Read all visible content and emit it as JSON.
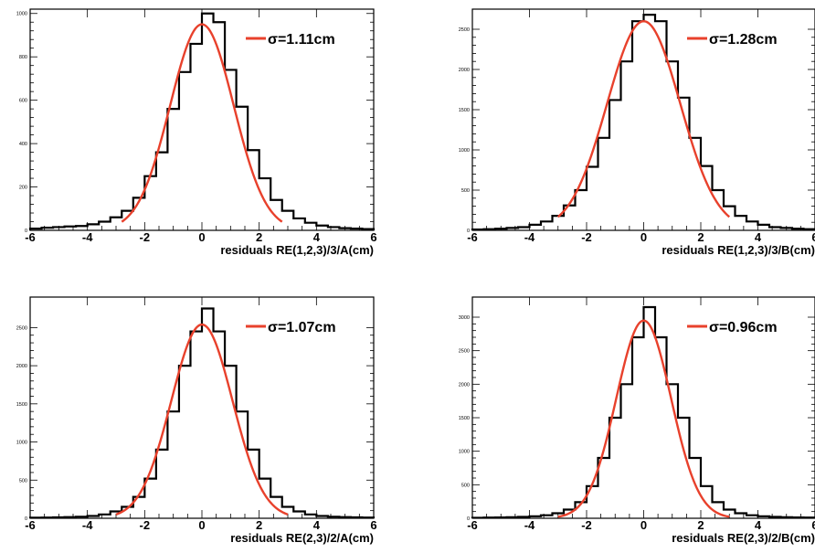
{
  "colors": {
    "histogram": "#000000",
    "fit": "#e8412c",
    "frame": "#000000",
    "background": "#ffffff"
  },
  "chart_data": [
    {
      "type": "line",
      "xlabel": "residuals RE(1,2,3)/3/A(cm)",
      "legend_label": "σ=1.11cm",
      "legend_placement": "top-right",
      "xlim": [
        -6,
        6
      ],
      "ylim": [
        0,
        1020
      ],
      "xticks": [
        -6,
        -4,
        -2,
        0,
        2,
        4,
        6
      ],
      "xtick_labels": [
        "-6",
        "-4",
        "-2",
        "0",
        "2",
        "4",
        "6"
      ],
      "yticks": [
        0,
        200,
        400,
        600,
        800,
        1000
      ],
      "ytick_labels": [
        "0",
        "200",
        "400",
        "600",
        "800",
        "1000"
      ],
      "bin_edges": [
        -6.0,
        -5.6,
        -5.2,
        -4.8,
        -4.4,
        -4.0,
        -3.6,
        -3.2,
        -2.8,
        -2.4,
        -2.0,
        -1.6,
        -1.2,
        -0.8,
        -0.4,
        0.0,
        0.4,
        0.8,
        1.2,
        1.6,
        2.0,
        2.4,
        2.8,
        3.2,
        3.6,
        4.0,
        4.4,
        4.8,
        5.2,
        5.6,
        6.0
      ],
      "series": [
        {
          "kind": "histogram",
          "values": [
            8,
            12,
            15,
            18,
            20,
            28,
            40,
            60,
            90,
            150,
            250,
            360,
            560,
            730,
            860,
            1000,
            960,
            740,
            570,
            370,
            240,
            140,
            90,
            55,
            35,
            22,
            15,
            10,
            8,
            6
          ]
        },
        {
          "kind": "fit",
          "amplitude": 950,
          "mean": 0,
          "sigma": 1.11,
          "x_range": [
            -2.8,
            2.8
          ]
        }
      ]
    },
    {
      "type": "line",
      "xlabel": "residuals RE(1,2,3)/3/B(cm)",
      "legend_label": "σ=1.28cm",
      "legend_placement": "top-right",
      "xlim": [
        -6,
        6
      ],
      "ylim": [
        0,
        2750
      ],
      "xticks": [
        -6,
        -4,
        -2,
        0,
        2,
        4,
        6
      ],
      "xtick_labels": [
        "-6",
        "-4",
        "-2",
        "0",
        "2",
        "4",
        "6"
      ],
      "yticks": [
        0,
        500,
        1000,
        1500,
        2000,
        2500
      ],
      "ytick_labels": [
        "0",
        "500",
        "1000",
        "1500",
        "2000",
        "2500"
      ],
      "bin_edges": [
        -6.0,
        -5.6,
        -5.2,
        -4.8,
        -4.4,
        -4.0,
        -3.6,
        -3.2,
        -2.8,
        -2.4,
        -2.0,
        -1.6,
        -1.2,
        -0.8,
        -0.4,
        0.0,
        0.4,
        0.8,
        1.2,
        1.6,
        2.0,
        2.4,
        2.8,
        3.2,
        3.6,
        4.0,
        4.4,
        4.8,
        5.2,
        5.6,
        6.0
      ],
      "series": [
        {
          "kind": "histogram",
          "values": [
            10,
            15,
            20,
            30,
            40,
            70,
            110,
            180,
            310,
            500,
            790,
            1150,
            1620,
            2100,
            2600,
            2680,
            2600,
            2100,
            1650,
            1150,
            800,
            500,
            300,
            180,
            110,
            70,
            40,
            30,
            20,
            15
          ]
        },
        {
          "kind": "fit",
          "amplitude": 2600,
          "mean": 0,
          "sigma": 1.28,
          "x_range": [
            -3.0,
            3.0
          ]
        }
      ]
    },
    {
      "type": "line",
      "xlabel": "residuals RE(2,3)/2/A(cm)",
      "legend_label": "σ=1.07cm",
      "legend_placement": "top-right",
      "xlim": [
        -6,
        6
      ],
      "ylim": [
        0,
        2900
      ],
      "xticks": [
        -6,
        -4,
        -2,
        0,
        2,
        4,
        6
      ],
      "xtick_labels": [
        "-6",
        "-4",
        "-2",
        "0",
        "2",
        "4",
        "6"
      ],
      "yticks": [
        0,
        500,
        1000,
        1500,
        2000,
        2500
      ],
      "ytick_labels": [
        "0",
        "500",
        "1000",
        "1500",
        "2000",
        "2500"
      ],
      "bin_edges": [
        -6.0,
        -5.6,
        -5.2,
        -4.8,
        -4.4,
        -4.0,
        -3.6,
        -3.2,
        -2.8,
        -2.4,
        -2.0,
        -1.6,
        -1.2,
        -0.8,
        -0.4,
        0.0,
        0.4,
        0.8,
        1.2,
        1.6,
        2.0,
        2.4,
        2.8,
        3.2,
        3.6,
        4.0,
        4.4,
        4.8,
        5.2,
        5.6,
        6.0
      ],
      "series": [
        {
          "kind": "histogram",
          "values": [
            8,
            10,
            12,
            15,
            20,
            30,
            50,
            90,
            150,
            280,
            520,
            900,
            1400,
            2000,
            2450,
            2750,
            2450,
            2000,
            1400,
            900,
            520,
            280,
            150,
            90,
            50,
            30,
            20,
            15,
            12,
            10
          ]
        },
        {
          "kind": "fit",
          "amplitude": 2540,
          "mean": 0,
          "sigma": 1.07,
          "x_range": [
            -3.0,
            3.0
          ]
        }
      ]
    },
    {
      "type": "line",
      "xlabel": "residuals RE(2,3)/2/B(cm)",
      "legend_label": "σ=0.96cm",
      "legend_placement": "top-right",
      "xlim": [
        -6,
        6
      ],
      "ylim": [
        0,
        3300
      ],
      "xticks": [
        -6,
        -4,
        -2,
        0,
        2,
        4,
        6
      ],
      "xtick_labels": [
        "-6",
        "-4",
        "-2",
        "0",
        "2",
        "4",
        "6"
      ],
      "yticks": [
        0,
        500,
        1000,
        1500,
        2000,
        2500,
        3000
      ],
      "ytick_labels": [
        "0",
        "500",
        "1000",
        "1500",
        "2000",
        "2500",
        "3000"
      ],
      "bin_edges": [
        -6.0,
        -5.6,
        -5.2,
        -4.8,
        -4.4,
        -4.0,
        -3.6,
        -3.2,
        -2.8,
        -2.4,
        -2.0,
        -1.6,
        -1.2,
        -0.8,
        -0.4,
        0.0,
        0.4,
        0.8,
        1.2,
        1.6,
        2.0,
        2.4,
        2.8,
        3.2,
        3.6,
        4.0,
        4.4,
        4.8,
        5.2,
        5.6,
        6.0
      ],
      "series": [
        {
          "kind": "histogram",
          "values": [
            8,
            10,
            12,
            15,
            20,
            30,
            45,
            75,
            130,
            240,
            480,
            900,
            1500,
            2000,
            2700,
            3150,
            2700,
            2000,
            1500,
            900,
            480,
            240,
            130,
            75,
            45,
            30,
            20,
            15,
            12,
            10
          ]
        },
        {
          "kind": "fit",
          "amplitude": 2950,
          "mean": 0,
          "sigma": 0.96,
          "x_range": [
            -3.0,
            3.0
          ]
        }
      ]
    }
  ]
}
